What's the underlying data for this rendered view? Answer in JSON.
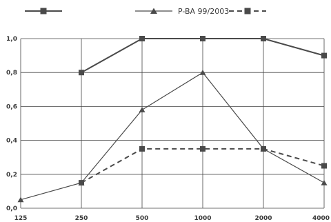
{
  "chart_data": {
    "type": "line",
    "x": [
      125,
      250,
      500,
      1000,
      2000,
      4000
    ],
    "x_tick_labels": [
      "125",
      "250",
      "500",
      "1000",
      "2000",
      "4000"
    ],
    "y_tick_labels": [
      "0,0",
      "0,2",
      "0,4",
      "0,6",
      "0,8",
      "1,0"
    ],
    "ylim": [
      0,
      1.0
    ],
    "grid": true,
    "legend_placement": "top",
    "series": [
      {
        "name": "",
        "marker": "square",
        "line_style": "solid",
        "color": "#4a4a4a",
        "values": [
          null,
          0.8,
          1.0,
          1.0,
          1.0,
          0.9
        ]
      },
      {
        "name": "P-BA 99/2003",
        "marker": "triangle",
        "line_style": "solid",
        "color": "#4a4a4a",
        "values": [
          0.05,
          0.15,
          0.58,
          0.8,
          0.35,
          0.15
        ]
      },
      {
        "name": "",
        "marker": "square",
        "line_style": "dashed",
        "color": "#4a4a4a",
        "values": [
          null,
          0.15,
          0.35,
          0.35,
          0.35,
          0.25
        ]
      }
    ]
  }
}
